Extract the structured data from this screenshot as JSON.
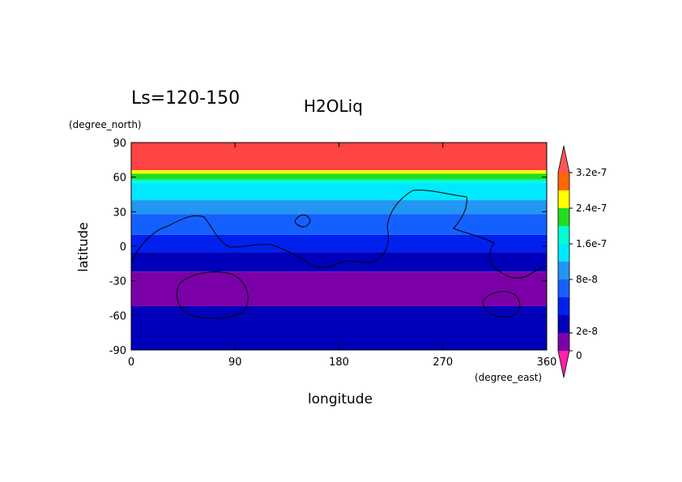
{
  "chart_data": {
    "type": "heatmap",
    "title": "H2OLiq",
    "subtitle": "Ls=120-150",
    "xlabel": "longitude",
    "ylabel": "latitude",
    "xunits": "(degree_east)",
    "yunits": "(degree_north)",
    "xlim": [
      0,
      360
    ],
    "ylim": [
      -90,
      90
    ],
    "x_ticks": [
      {
        "value": 0,
        "label": "0"
      },
      {
        "value": 90,
        "label": "90"
      },
      {
        "value": 180,
        "label": "180"
      },
      {
        "value": 270,
        "label": "270"
      },
      {
        "value": 360,
        "label": "360"
      }
    ],
    "y_ticks": [
      {
        "value": 90,
        "label": "90"
      },
      {
        "value": 60,
        "label": "60"
      },
      {
        "value": 30,
        "label": "30"
      },
      {
        "value": 0,
        "label": "0"
      },
      {
        "value": -30,
        "label": "-30"
      },
      {
        "value": -60,
        "label": "-60"
      },
      {
        "value": -90,
        "label": "-90"
      }
    ],
    "colorbar": {
      "levels": [
        0,
        2e-08,
        4e-08,
        6e-08,
        8e-08,
        1.2e-07,
        1.6e-07,
        2e-07,
        2.4e-07,
        2.8e-07,
        3.2e-07
      ],
      "colors": [
        "#7b00a8",
        "#0000bb",
        "#0020ee",
        "#1460ff",
        "#2196f3",
        "#00e8ff",
        "#00ffd0",
        "#22dd22",
        "#ffff00",
        "#ff6600",
        "#ff4444"
      ],
      "under_color": "#ff22aa",
      "over_color": "#ff5555",
      "labels": [
        {
          "value": 0,
          "label": "0"
        },
        {
          "value": 2e-08,
          "label": "2e-8"
        },
        {
          "value": 8e-08,
          "label": "8e-8"
        },
        {
          "value": 1.6e-07,
          "label": "1.6e-7"
        },
        {
          "value": 2.4e-07,
          "label": "2.4e-7"
        },
        {
          "value": 3.2e-07,
          "label": "3.2e-7"
        }
      ]
    },
    "latitude_bands": [
      {
        "lat_min": 66,
        "lat_max": 90,
        "level_index": 10
      },
      {
        "lat_min": 63,
        "lat_max": 66,
        "level_index": 8
      },
      {
        "lat_min": 58,
        "lat_max": 63,
        "level_index": 7
      },
      {
        "lat_min": 55,
        "lat_max": 58,
        "level_index": 6
      },
      {
        "lat_min": 40,
        "lat_max": 55,
        "level_index": 5
      },
      {
        "lat_min": 28,
        "lat_max": 40,
        "level_index": 4
      },
      {
        "lat_min": 10,
        "lat_max": 28,
        "level_index": 3
      },
      {
        "lat_min": -5,
        "lat_max": 10,
        "level_index": 2
      },
      {
        "lat_min": -22,
        "lat_max": -5,
        "level_index": 1
      },
      {
        "lat_min": -52,
        "lat_max": -22,
        "level_index": 0
      },
      {
        "lat_min": -90,
        "lat_max": -52,
        "level_index": 1
      }
    ]
  }
}
